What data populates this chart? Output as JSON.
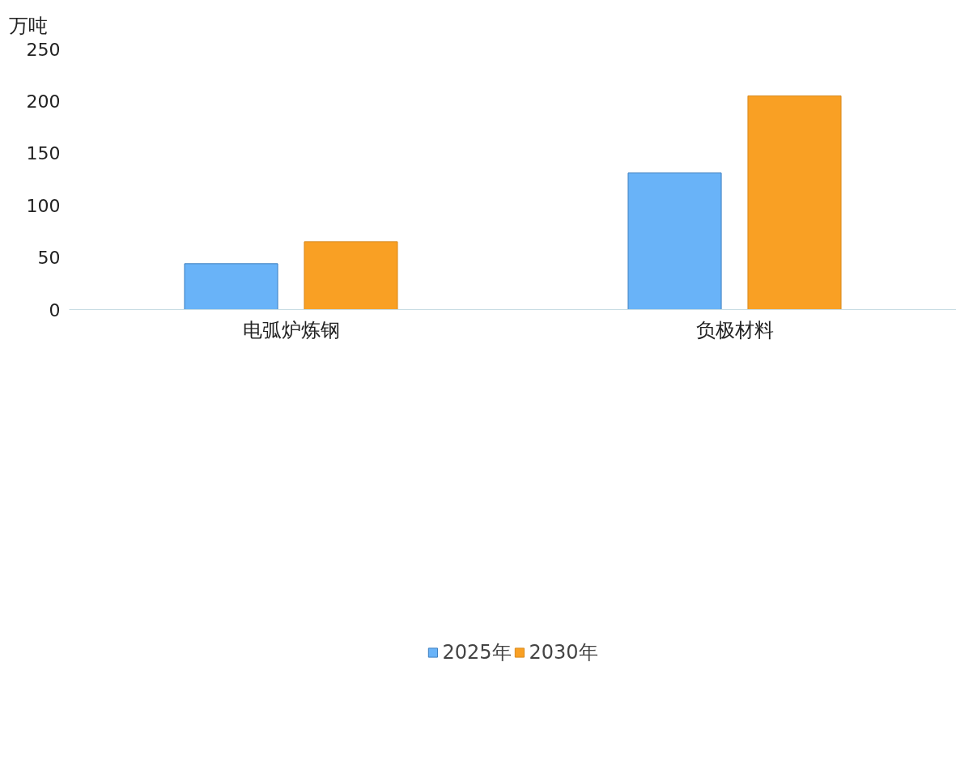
{
  "chart_data": {
    "type": "bar",
    "ylabel": "万吨",
    "categories": [
      "电弧炉炼钢",
      "负极材料"
    ],
    "series": [
      {
        "name": "2025年",
        "color": "#69b3f8",
        "values": [
          44,
          131
        ]
      },
      {
        "name": "2030年",
        "color": "#f9a024",
        "values": [
          65,
          205
        ]
      }
    ],
    "ylim": [
      0,
      250
    ],
    "yticks": [
      0,
      50,
      100,
      150,
      200,
      250
    ],
    "grid": false,
    "legend": "bottom"
  }
}
